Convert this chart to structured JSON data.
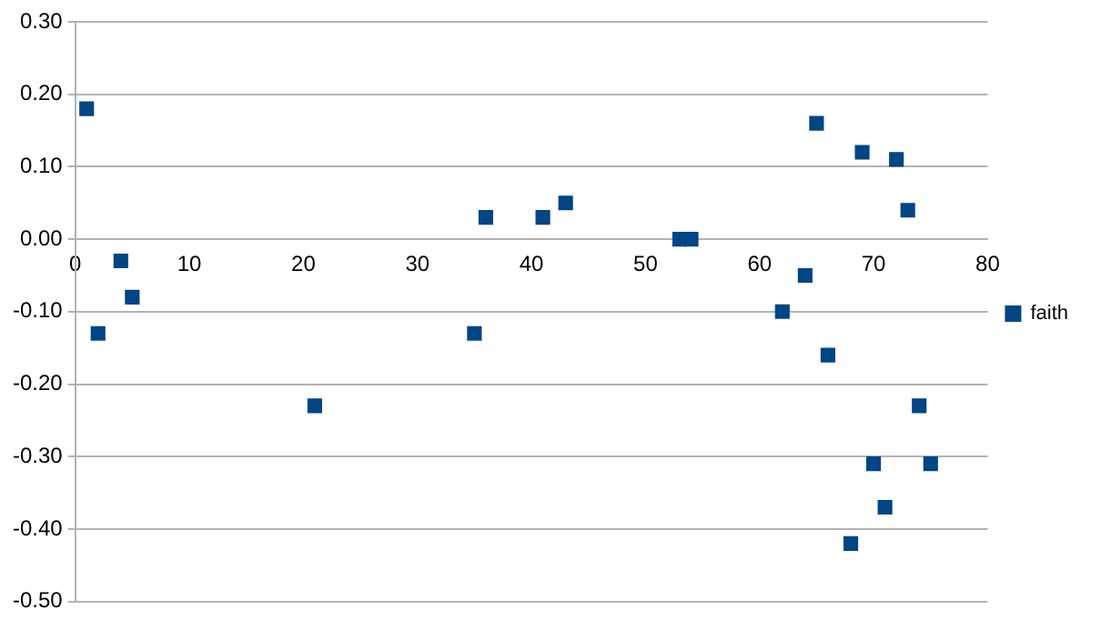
{
  "chart_data": {
    "type": "scatter",
    "xlim": [
      0,
      80
    ],
    "xticks": [
      0,
      10,
      20,
      30,
      40,
      50,
      60,
      70,
      80
    ],
    "ylim": [
      -0.5,
      0.3
    ],
    "yticks": [
      {
        "value": -0.5,
        "label": "-0.50"
      },
      {
        "value": -0.4,
        "label": "-0.40"
      },
      {
        "value": -0.3,
        "label": "-0.30"
      },
      {
        "value": -0.2,
        "label": "-0.20"
      },
      {
        "value": -0.1,
        "label": "-0.10"
      },
      {
        "value": 0,
        "label": "0.00"
      },
      {
        "value": 0.1,
        "label": "0.10"
      },
      {
        "value": 0.2,
        "label": "0.20"
      },
      {
        "value": 0.3,
        "label": "0.30"
      }
    ],
    "grid": "y",
    "legend": "right",
    "marker": "square",
    "series": [
      {
        "name": "faith",
        "color": "#004586",
        "x": [
          1,
          2,
          4,
          5,
          21,
          35,
          36,
          41,
          43,
          53,
          54,
          62,
          64,
          65,
          66,
          68,
          69,
          70,
          71,
          72,
          73,
          74,
          75
        ],
        "values": [
          0.18,
          -0.13,
          -0.03,
          -0.08,
          -0.23,
          -0.13,
          0.03,
          0.03,
          0.05,
          0,
          0,
          -0.1,
          -0.05,
          0.16,
          -0.16,
          -0.42,
          0.12,
          -0.31,
          -0.37,
          0.11,
          0.04,
          -0.23,
          -0.31
        ]
      }
    ]
  }
}
